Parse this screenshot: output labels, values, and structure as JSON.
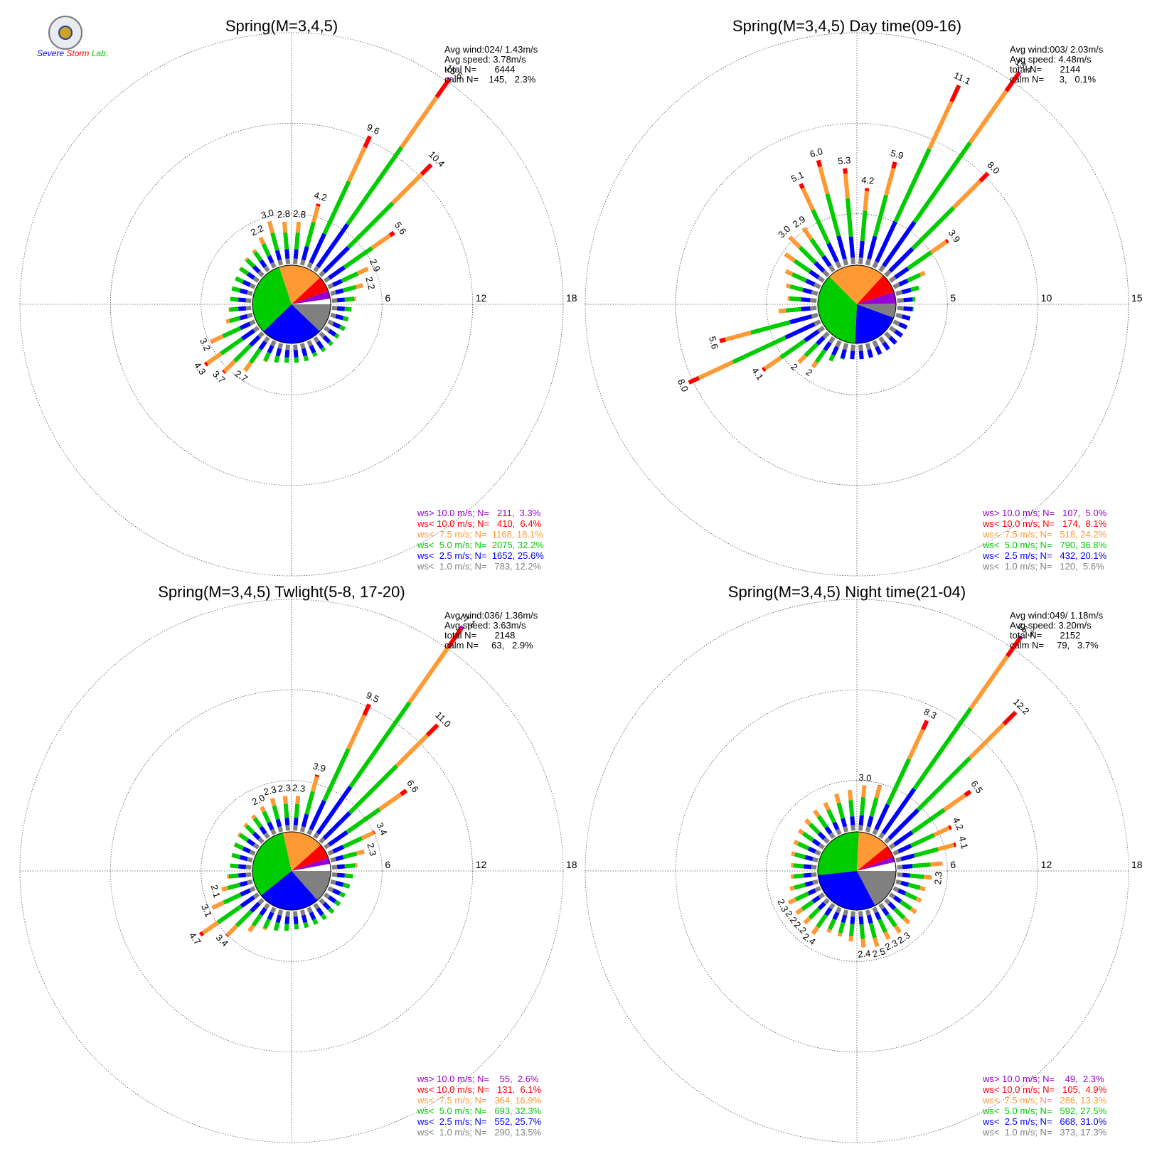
{
  "logo": {
    "text": "Severe Storm Lab.",
    "colors": [
      "#0000ff",
      "#ff0000",
      "#00cc00"
    ]
  },
  "colors": {
    "ws_gt_10": "#9400d3",
    "ws_lt_10": "#ff0000",
    "ws_lt_7_5": "#ff9933",
    "ws_lt_5": "#00cc00",
    "ws_lt_2_5": "#0000ff",
    "ws_lt_1": "#808080",
    "calm": "#ffffff"
  },
  "chart_data": [
    {
      "type": "polar-bar",
      "title": "Spring(M=3,4,5)",
      "rings": [
        6,
        12,
        18
      ],
      "rmax": 18,
      "stats": {
        "avg_wind": "Avg wind:024/ 1.43m/s",
        "avg_speed": "Avg speed: 3.78m/s",
        "total": "total N=       6444",
        "calm": "calm N=    145,   2.3%"
      },
      "legend": [
        {
          "text": "ws> 10.0 m/s; N=   211,  3.3%",
          "color": "#9400d3"
        },
        {
          "text": "ws< 10.0 m/s; N=   410,  6.4%",
          "color": "#ff0000"
        },
        {
          "text": "ws<  7.5 m/s; N=  1168, 18.1%",
          "color": "#ff9933"
        },
        {
          "text": "ws<  5.0 m/s; N=  2075, 32.2%",
          "color": "#00cc00"
        },
        {
          "text": "ws<  2.5 m/s; N=  1652, 25.6%",
          "color": "#0000ff"
        },
        {
          "text": "ws<  1.0 m/s; N=   783, 12.2%",
          "color": "#808080"
        }
      ],
      "pie": [
        12.2,
        25.6,
        32.2,
        18.1,
        6.4,
        3.3,
        2.3
      ],
      "bars": [
        {
          "dir": 5,
          "total": 2.8,
          "label": "2.8"
        },
        {
          "dir": 15,
          "total": 4.2,
          "label": "4.2"
        },
        {
          "dir": 25,
          "total": 9.6,
          "label": "9.6"
        },
        {
          "dir": 35,
          "total": 15.6,
          "label": "15.6"
        },
        {
          "dir": 45,
          "total": 10.4,
          "label": "10.4"
        },
        {
          "dir": 55,
          "total": 5.6,
          "label": "5.6"
        },
        {
          "dir": 65,
          "total": 2.9,
          "label": "2.9"
        },
        {
          "dir": 75,
          "total": 2.2,
          "label": "2.2"
        },
        {
          "dir": 85,
          "total": 1.6
        },
        {
          "dir": 95,
          "total": 1.3
        },
        {
          "dir": 105,
          "total": 1.2
        },
        {
          "dir": 115,
          "total": 1.2
        },
        {
          "dir": 125,
          "total": 1.1
        },
        {
          "dir": 135,
          "total": 1.1
        },
        {
          "dir": 145,
          "total": 1.1
        },
        {
          "dir": 155,
          "total": 1.1
        },
        {
          "dir": 165,
          "total": 1.2
        },
        {
          "dir": 175,
          "total": 1.2
        },
        {
          "dir": 185,
          "total": 1.2
        },
        {
          "dir": 195,
          "total": 1.3
        },
        {
          "dir": 205,
          "total": 1.5
        },
        {
          "dir": 215,
          "total": 2.7,
          "label": "2.7"
        },
        {
          "dir": 225,
          "total": 3.7,
          "label": "3.7"
        },
        {
          "dir": 235,
          "total": 4.3,
          "label": "4.3"
        },
        {
          "dir": 245,
          "total": 3.2,
          "label": "3.2"
        },
        {
          "dir": 255,
          "total": 1.8
        },
        {
          "dir": 265,
          "total": 1.5
        },
        {
          "dir": 275,
          "total": 1.4
        },
        {
          "dir": 285,
          "total": 1.4
        },
        {
          "dir": 295,
          "total": 1.4
        },
        {
          "dir": 305,
          "total": 1.5
        },
        {
          "dir": 315,
          "total": 1.6
        },
        {
          "dir": 325,
          "total": 1.7
        },
        {
          "dir": 335,
          "total": 2.2,
          "label": "2.2"
        },
        {
          "dir": 345,
          "total": 3.0,
          "label": "3.0"
        },
        {
          "dir": 355,
          "total": 2.8,
          "label": "2.8"
        }
      ]
    },
    {
      "type": "polar-bar",
      "title": "Spring(M=3,4,5) Day time(09-16)",
      "rings": [
        5,
        10,
        15
      ],
      "rmax": 15,
      "stats": {
        "avg_wind": "Avg wind:003/ 2.03m/s",
        "avg_speed": "Avg speed: 4.48m/s",
        "total": "total N=       2144",
        "calm": "calm N=      3,   0.1%"
      },
      "legend": [
        {
          "text": "ws> 10.0 m/s; N=   107,  5.0%",
          "color": "#9400d3"
        },
        {
          "text": "ws< 10.0 m/s; N=   174,  8.1%",
          "color": "#ff0000"
        },
        {
          "text": "ws<  7.5 m/s; N=   518, 24.2%",
          "color": "#ff9933"
        },
        {
          "text": "ws<  5.0 m/s; N=   790, 36.8%",
          "color": "#00cc00"
        },
        {
          "text": "ws<  2.5 m/s; N=   432, 20.1%",
          "color": "#0000ff"
        },
        {
          "text": "ws<  1.0 m/s; N=   120,  5.6%",
          "color": "#808080"
        }
      ],
      "pie": [
        5.6,
        20.1,
        36.8,
        24.2,
        8.1,
        5.0,
        0.1
      ],
      "bars": [
        {
          "dir": 5,
          "total": 4.2,
          "label": "4.2"
        },
        {
          "dir": 15,
          "total": 5.9,
          "label": "5.9"
        },
        {
          "dir": 25,
          "total": 11.1,
          "label": "11.1"
        },
        {
          "dir": 35,
          "total": 13.4,
          "label": "13.4"
        },
        {
          "dir": 45,
          "total": 8.0,
          "label": "8.0"
        },
        {
          "dir": 55,
          "total": 3.9,
          "label": "3.9"
        },
        {
          "dir": 65,
          "total": 1.9
        },
        {
          "dir": 75,
          "total": 1.3
        },
        {
          "dir": 85,
          "total": 1.0
        },
        {
          "dir": 95,
          "total": 0.9
        },
        {
          "dir": 105,
          "total": 0.8
        },
        {
          "dir": 115,
          "total": 0.8
        },
        {
          "dir": 125,
          "total": 0.8
        },
        {
          "dir": 135,
          "total": 0.8
        },
        {
          "dir": 145,
          "total": 0.8
        },
        {
          "dir": 155,
          "total": 0.8
        },
        {
          "dir": 165,
          "total": 0.8
        },
        {
          "dir": 175,
          "total": 0.8
        },
        {
          "dir": 185,
          "total": 0.8
        },
        {
          "dir": 195,
          "total": 0.9
        },
        {
          "dir": 205,
          "total": 1.2
        },
        {
          "dir": 215,
          "total": 2.0,
          "label": "2"
        },
        {
          "dir": 225,
          "total": 2.3,
          "label": "2"
        },
        {
          "dir": 235,
          "total": 4.1,
          "label": "4.1"
        },
        {
          "dir": 245,
          "total": 8.0,
          "label": "8.0"
        },
        {
          "dir": 255,
          "total": 5.6,
          "label": "5.6"
        },
        {
          "dir": 265,
          "total": 2.1
        },
        {
          "dir": 275,
          "total": 1.6
        },
        {
          "dir": 285,
          "total": 1.8
        },
        {
          "dir": 295,
          "total": 2.1
        },
        {
          "dir": 305,
          "total": 2.6
        },
        {
          "dir": 315,
          "total": 3.0,
          "label": "3.0"
        },
        {
          "dir": 325,
          "total": 2.9,
          "label": "2.9"
        },
        {
          "dir": 335,
          "total": 5.1,
          "label": "5.1"
        },
        {
          "dir": 345,
          "total": 6.0,
          "label": "6.0"
        },
        {
          "dir": 355,
          "total": 5.3,
          "label": "5.3"
        }
      ]
    },
    {
      "type": "polar-bar",
      "title": "Spring(M=3,4,5) Twlight(5-8, 17-20)",
      "rings": [
        6,
        12,
        18
      ],
      "rmax": 18,
      "stats": {
        "avg_wind": "Avg wind:036/ 1.36m/s",
        "avg_speed": "Avg speed: 3.63m/s",
        "total": "total N=       2148",
        "calm": "calm N=     63,   2.9%"
      },
      "legend": [
        {
          "text": "ws> 10.0 m/s; N=    55,  2.6%",
          "color": "#9400d3"
        },
        {
          "text": "ws< 10.0 m/s; N=   131,  6.1%",
          "color": "#ff0000"
        },
        {
          "text": "ws<  7.5 m/s; N=   364, 16.9%",
          "color": "#ff9933"
        },
        {
          "text": "ws<  5.0 m/s; N=   693, 32.3%",
          "color": "#00cc00"
        },
        {
          "text": "ws<  2.5 m/s; N=   552, 25.7%",
          "color": "#0000ff"
        },
        {
          "text": "ws<  1.0 m/s; N=   290, 13.5%",
          "color": "#808080"
        }
      ],
      "pie": [
        13.5,
        25.7,
        32.3,
        16.9,
        6.1,
        2.6,
        2.9
      ],
      "bars": [
        {
          "dir": 5,
          "total": 2.3,
          "label": "2.3"
        },
        {
          "dir": 15,
          "total": 3.9,
          "label": "3.9"
        },
        {
          "dir": 25,
          "total": 9.5,
          "label": "9.5"
        },
        {
          "dir": 35,
          "total": 17.1,
          "label": "17.1"
        },
        {
          "dir": 45,
          "total": 11.0,
          "label": "11.0"
        },
        {
          "dir": 55,
          "total": 6.6,
          "label": "6.6"
        },
        {
          "dir": 65,
          "total": 3.4,
          "label": "3.4"
        },
        {
          "dir": 75,
          "total": 2.3,
          "label": "2.3"
        },
        {
          "dir": 85,
          "total": 1.7
        },
        {
          "dir": 95,
          "total": 1.4
        },
        {
          "dir": 105,
          "total": 1.3
        },
        {
          "dir": 115,
          "total": 1.2
        },
        {
          "dir": 125,
          "total": 1.2
        },
        {
          "dir": 135,
          "total": 1.2
        },
        {
          "dir": 145,
          "total": 1.2
        },
        {
          "dir": 155,
          "total": 1.2
        },
        {
          "dir": 165,
          "total": 1.2
        },
        {
          "dir": 175,
          "total": 1.2
        },
        {
          "dir": 185,
          "total": 1.3
        },
        {
          "dir": 195,
          "total": 1.4
        },
        {
          "dir": 205,
          "total": 1.6
        },
        {
          "dir": 215,
          "total": 2.2
        },
        {
          "dir": 225,
          "total": 3.4,
          "label": "3.4"
        },
        {
          "dir": 235,
          "total": 4.7,
          "label": "4.7"
        },
        {
          "dir": 245,
          "total": 3.1,
          "label": "3.1"
        },
        {
          "dir": 255,
          "total": 2.1,
          "label": "2.1"
        },
        {
          "dir": 265,
          "total": 1.6
        },
        {
          "dir": 275,
          "total": 1.4
        },
        {
          "dir": 285,
          "total": 1.4
        },
        {
          "dir": 295,
          "total": 1.5
        },
        {
          "dir": 305,
          "total": 1.6
        },
        {
          "dir": 315,
          "total": 1.7
        },
        {
          "dir": 325,
          "total": 1.8
        },
        {
          "dir": 335,
          "total": 2.0,
          "label": "2.0"
        },
        {
          "dir": 345,
          "total": 2.3,
          "label": "2.3"
        },
        {
          "dir": 355,
          "total": 2.3,
          "label": "2.3"
        }
      ]
    },
    {
      "type": "polar-bar",
      "title": "Spring(M=3,4,5) Night time(21-04)",
      "rings": [
        6,
        12,
        18
      ],
      "rmax": 18,
      "stats": {
        "avg_wind": "Avg wind:049/ 1.18m/s",
        "avg_speed": "Avg speed: 3.20m/s",
        "total": "total N=       2152",
        "calm": "calm N=     79,   3.7%"
      },
      "legend": [
        {
          "text": "ws> 10.0 m/s; N=    49,  2.3%",
          "color": "#9400d3"
        },
        {
          "text": "ws< 10.0 m/s; N=   105,  4.9%",
          "color": "#ff0000"
        },
        {
          "text": "ws<  7.5 m/s; N=   286, 13.3%",
          "color": "#ff9933"
        },
        {
          "text": "ws<  5.0 m/s; N=   592, 27.5%",
          "color": "#00cc00"
        },
        {
          "text": "ws<  2.5 m/s; N=   668, 31.0%",
          "color": "#0000ff"
        },
        {
          "text": "ws<  1.0 m/s; N=   373, 17.3%",
          "color": "#808080"
        }
      ],
      "pie": [
        17.3,
        31.0,
        27.5,
        13.3,
        4.9,
        2.3,
        3.7
      ],
      "bars": [
        {
          "dir": 5,
          "total": 3.0,
          "label": "3.0"
        },
        {
          "dir": 15,
          "total": 3.2
        },
        {
          "dir": 25,
          "total": 8.3,
          "label": "8.3"
        },
        {
          "dir": 35,
          "total": 16.3,
          "label": "16.3"
        },
        {
          "dir": 45,
          "total": 12.2,
          "label": "12.2"
        },
        {
          "dir": 55,
          "total": 6.5,
          "label": "6.5"
        },
        {
          "dir": 65,
          "total": 4.2,
          "label": "4.2"
        },
        {
          "dir": 75,
          "total": 4.1,
          "label": "4.1"
        },
        {
          "dir": 85,
          "total": 3.0
        },
        {
          "dir": 95,
          "total": 2.3,
          "label": "2.3"
        },
        {
          "dir": 105,
          "total": 2.0
        },
        {
          "dir": 115,
          "total": 2.0
        },
        {
          "dir": 125,
          "total": 2.1
        },
        {
          "dir": 135,
          "total": 2.2
        },
        {
          "dir": 145,
          "total": 2.3,
          "label": "2.3"
        },
        {
          "dir": 155,
          "total": 2.3,
          "label": "2.3"
        },
        {
          "dir": 165,
          "total": 2.5,
          "label": "2.5"
        },
        {
          "dir": 175,
          "total": 2.4,
          "label": "2.4"
        },
        {
          "dir": 185,
          "total": 2.0
        },
        {
          "dir": 195,
          "total": 1.8
        },
        {
          "dir": 205,
          "total": 1.8
        },
        {
          "dir": 215,
          "total": 2.4,
          "label": "2.4"
        },
        {
          "dir": 225,
          "total": 2.2,
          "label": "2.2"
        },
        {
          "dir": 235,
          "total": 2.2,
          "label": "2.2"
        },
        {
          "dir": 245,
          "total": 2.3,
          "label": "2.3"
        },
        {
          "dir": 255,
          "total": 1.9
        },
        {
          "dir": 265,
          "total": 1.7
        },
        {
          "dir": 275,
          "total": 1.7
        },
        {
          "dir": 285,
          "total": 1.8
        },
        {
          "dir": 295,
          "total": 1.9
        },
        {
          "dir": 305,
          "total": 2.0
        },
        {
          "dir": 315,
          "total": 2.1
        },
        {
          "dir": 325,
          "total": 2.2
        },
        {
          "dir": 335,
          "total": 2.3
        },
        {
          "dir": 345,
          "total": 2.6
        },
        {
          "dir": 355,
          "total": 2.7
        }
      ]
    }
  ]
}
